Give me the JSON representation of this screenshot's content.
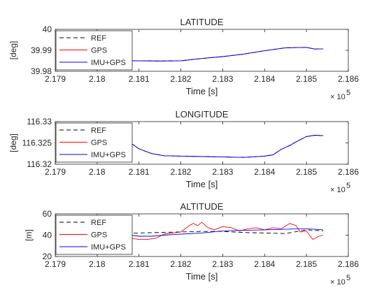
{
  "chart_data": [
    {
      "type": "line",
      "title": "LATITUDE",
      "xlabel": "Time [s]",
      "ylabel": "[deg]",
      "x_tick_labels": [
        "2.179",
        "2.18",
        "2.181",
        "2.182",
        "2.183",
        "2.184",
        "2.185",
        "2.186"
      ],
      "x_multiplier": "× 10",
      "x_multiplier_exp": "5",
      "xlim": [
        217900,
        218600
      ],
      "ylim": [
        39.98,
        40.0
      ],
      "y_ticks": [
        39.98,
        39.99,
        40.0
      ],
      "y_tick_labels": [
        "39.98",
        "39.99",
        "40"
      ],
      "legend_position": "top-left",
      "legend": [
        "REF",
        "GPS",
        "IMU+GPS"
      ],
      "colors": {
        "REF": "#000000",
        "GPS": "#ff0000",
        "IMU+GPS": "#0000ff"
      },
      "series": [
        {
          "name": "REF",
          "x": [
            218037,
            218100,
            218150,
            218200,
            218250,
            218300,
            218350,
            218400,
            218450,
            218480,
            218500,
            218520,
            218540
          ],
          "y": [
            39.9851,
            39.985,
            39.9849,
            39.985,
            39.9861,
            39.987,
            39.9882,
            39.9898,
            39.9912,
            39.9913,
            39.9914,
            39.9906,
            39.9907
          ]
        },
        {
          "name": "GPS",
          "x": [
            218037,
            218100,
            218150,
            218200,
            218250,
            218300,
            218350,
            218400,
            218450,
            218480,
            218500,
            218520,
            218540
          ],
          "y": [
            39.9851,
            39.985,
            39.9849,
            39.985,
            39.9861,
            39.987,
            39.9882,
            39.9898,
            39.9912,
            39.9913,
            39.9914,
            39.9906,
            39.9907
          ]
        },
        {
          "name": "IMU+GPS",
          "x": [
            218037,
            218100,
            218150,
            218200,
            218250,
            218300,
            218350,
            218400,
            218450,
            218480,
            218500,
            218520,
            218540
          ],
          "y": [
            39.9851,
            39.985,
            39.9849,
            39.985,
            39.9861,
            39.987,
            39.9882,
            39.9898,
            39.9912,
            39.9913,
            39.9914,
            39.9906,
            39.9907
          ]
        }
      ]
    },
    {
      "type": "line",
      "title": "LONGITUDE",
      "xlabel": "Time [s]",
      "ylabel": "[deg]",
      "x_tick_labels": [
        "2.179",
        "2.18",
        "2.181",
        "2.182",
        "2.183",
        "2.184",
        "2.185",
        "2.186"
      ],
      "x_multiplier": "× 10",
      "x_multiplier_exp": "5",
      "xlim": [
        217900,
        218600
      ],
      "ylim": [
        116.32,
        116.33
      ],
      "y_ticks": [
        116.32,
        116.325,
        116.33
      ],
      "y_tick_labels": [
        "116.32",
        "116.325",
        "116.33"
      ],
      "legend_position": "top-left",
      "legend": [
        "REF",
        "GPS",
        "IMU+GPS"
      ],
      "colors": {
        "REF": "#000000",
        "GPS": "#ff0000",
        "IMU+GPS": "#0000ff"
      },
      "series": [
        {
          "name": "REF",
          "x": [
            218037,
            218060,
            218080,
            218100,
            218130,
            218160,
            218200,
            218250,
            218300,
            218350,
            218400,
            218420,
            218440,
            218460,
            218480,
            218500,
            218520,
            218540
          ],
          "y": [
            116.327,
            116.3264,
            116.325,
            116.3236,
            116.3225,
            116.322,
            116.3219,
            116.3218,
            116.3217,
            116.3216,
            116.3219,
            116.3222,
            116.3235,
            116.3244,
            116.3255,
            116.3265,
            116.3268,
            116.3267
          ]
        },
        {
          "name": "GPS",
          "x": [
            218037,
            218060,
            218080,
            218100,
            218130,
            218160,
            218200,
            218250,
            218300,
            218350,
            218400,
            218420,
            218440,
            218460,
            218480,
            218500,
            218520,
            218540
          ],
          "y": [
            116.327,
            116.3264,
            116.325,
            116.3236,
            116.3225,
            116.322,
            116.3219,
            116.3218,
            116.3217,
            116.3216,
            116.3219,
            116.3222,
            116.3235,
            116.3244,
            116.3255,
            116.3265,
            116.3268,
            116.3267
          ]
        },
        {
          "name": "IMU+GPS",
          "x": [
            218037,
            218060,
            218080,
            218100,
            218130,
            218160,
            218200,
            218250,
            218300,
            218350,
            218400,
            218420,
            218440,
            218460,
            218480,
            218500,
            218520,
            218540
          ],
          "y": [
            116.327,
            116.3264,
            116.325,
            116.3236,
            116.3225,
            116.322,
            116.3219,
            116.3218,
            116.3217,
            116.3216,
            116.3219,
            116.3222,
            116.3235,
            116.3244,
            116.3255,
            116.3265,
            116.3268,
            116.3267
          ]
        }
      ]
    },
    {
      "type": "line",
      "title": "ALTITUDE",
      "xlabel": "Time [s]",
      "ylabel": "[m]",
      "x_tick_labels": [
        "2.179",
        "2.18",
        "2.181",
        "2.182",
        "2.183",
        "2.184",
        "2.185",
        "2.186"
      ],
      "x_multiplier": "× 10",
      "x_multiplier_exp": "5",
      "xlim": [
        217900,
        218600
      ],
      "ylim": [
        20,
        60
      ],
      "y_ticks": [
        20,
        40,
        60
      ],
      "y_tick_labels": [
        "20",
        "40",
        "60"
      ],
      "legend_position": "top-left",
      "legend": [
        "REF",
        "GPS",
        "IMU+GPS"
      ],
      "colors": {
        "REF": "#000000",
        "GPS": "#ff0000",
        "IMU+GPS": "#0000ff"
      },
      "series": [
        {
          "name": "REF",
          "x": [
            218037,
            218100,
            218150,
            218200,
            218250,
            218300,
            218350,
            218400,
            218450,
            218500,
            218540
          ],
          "y": [
            41,
            42,
            42.5,
            43,
            43.5,
            43.5,
            42.5,
            42,
            41.5,
            45,
            44
          ]
        },
        {
          "name": "GPS",
          "x": [
            218037,
            218045,
            218055,
            218065,
            218080,
            218100,
            218120,
            218140,
            218160,
            218180,
            218200,
            218210,
            218220,
            218230,
            218240,
            218250,
            218265,
            218280,
            218300,
            218320,
            218340,
            218360,
            218380,
            218400,
            218420,
            218440,
            218460,
            218475,
            218485,
            218500,
            218515,
            218530,
            218540
          ],
          "y": [
            40,
            44,
            45,
            39,
            37,
            36,
            36,
            37,
            41,
            42,
            43,
            46,
            49,
            51,
            49,
            52,
            47,
            45,
            48,
            47,
            44,
            46,
            47,
            45,
            47,
            46,
            51,
            49,
            43,
            44,
            36,
            39,
            40
          ]
        },
        {
          "name": "IMU+GPS",
          "x": [
            218037,
            218060,
            218080,
            218100,
            218130,
            218160,
            218200,
            218250,
            218300,
            218350,
            218400,
            218450,
            218480,
            218500,
            218520,
            218540
          ],
          "y": [
            42,
            41.5,
            40,
            39,
            39,
            40,
            41,
            42,
            44,
            44.5,
            45,
            45.5,
            46,
            46,
            45.5,
            45
          ]
        }
      ]
    }
  ]
}
